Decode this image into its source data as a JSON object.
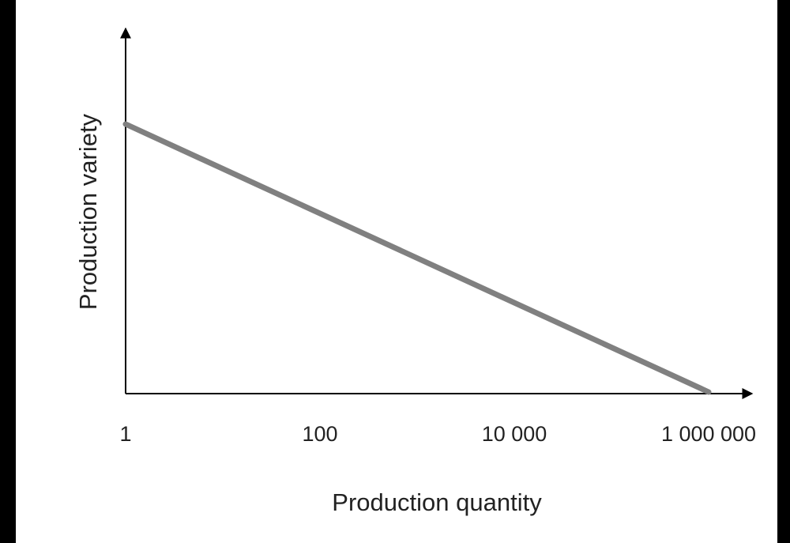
{
  "chart_data": {
    "type": "line",
    "title": "",
    "xlabel": "Production quantity",
    "ylabel": "Production variety",
    "x_scale": "log",
    "x_ticks": [
      1,
      100,
      10000,
      1000000
    ],
    "x_tick_labels": [
      "1",
      "100",
      "10 000",
      "1 000 000"
    ],
    "y_ticks": [],
    "grid": false,
    "series": [
      {
        "x": [
          1,
          1000000
        ],
        "y": [
          1,
          0
        ],
        "color": "#808080"
      }
    ]
  }
}
